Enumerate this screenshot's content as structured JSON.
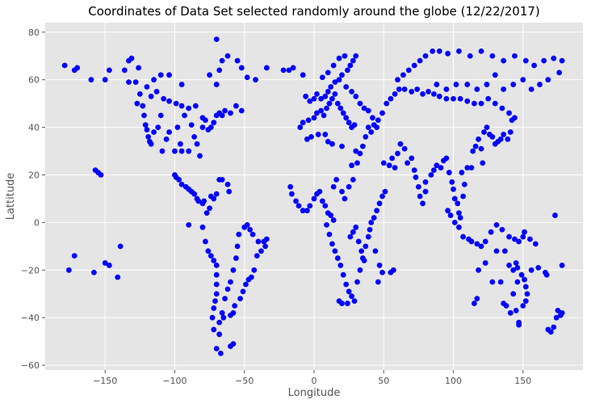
{
  "chart_data": {
    "type": "scatter",
    "title": "Coordinates of Data Set selected randomly around the globe (12/22/2017)",
    "xlabel": "Longitude",
    "ylabel": "Lattitude",
    "xlim": [
      -193,
      193
    ],
    "ylim": [
      -62,
      84
    ],
    "xticks": [
      -150,
      -100,
      -50,
      0,
      50,
      100,
      150
    ],
    "yticks": [
      -60,
      -40,
      -20,
      0,
      20,
      40,
      60,
      80
    ],
    "grid": true,
    "style": "ggplot",
    "marker_color": "#0000ff",
    "background_color": "#e5e5e5",
    "points": [
      [
        -179,
        66
      ],
      [
        -172,
        64
      ],
      [
        -170,
        65
      ],
      [
        -160,
        60
      ],
      [
        -157,
        22
      ],
      [
        -155,
        21
      ],
      [
        -153,
        20
      ],
      [
        -158,
        -21
      ],
      [
        -150,
        60
      ],
      [
        -147,
        64
      ],
      [
        -139,
        -10
      ],
      [
        -136,
        64
      ],
      [
        -133,
        68
      ],
      [
        -131,
        69
      ],
      [
        -126,
        65
      ],
      [
        -125,
        54
      ],
      [
        -127,
        50
      ],
      [
        -123,
        49
      ],
      [
        -122,
        45
      ],
      [
        -121,
        41
      ],
      [
        -120,
        39
      ],
      [
        -119,
        36
      ],
      [
        -118,
        34
      ],
      [
        -117,
        33
      ],
      [
        -115,
        38
      ],
      [
        -112,
        40
      ],
      [
        -110,
        45
      ],
      [
        -109,
        30
      ],
      [
        -106,
        35
      ],
      [
        -104,
        38
      ],
      [
        -100,
        30
      ],
      [
        -98,
        40
      ],
      [
        -96,
        33
      ],
      [
        -95,
        30
      ],
      [
        -93,
        45
      ],
      [
        -90,
        30
      ],
      [
        -88,
        41
      ],
      [
        -86,
        36
      ],
      [
        -84,
        33
      ],
      [
        -82,
        28
      ],
      [
        -80,
        40
      ],
      [
        -78,
        43
      ],
      [
        -76,
        39
      ],
      [
        -74,
        40
      ],
      [
        -72,
        42
      ],
      [
        -70,
        45
      ],
      [
        -68,
        46
      ],
      [
        -66,
        45
      ],
      [
        -64,
        47
      ],
      [
        -60,
        46
      ],
      [
        -56,
        49
      ],
      [
        -52,
        47
      ],
      [
        -117,
        53
      ],
      [
        -113,
        55
      ],
      [
        -108,
        52
      ],
      [
        -104,
        51
      ],
      [
        -99,
        50
      ],
      [
        -95,
        49
      ],
      [
        -90,
        48
      ],
      [
        -85,
        49
      ],
      [
        -80,
        44
      ],
      [
        -110,
        62
      ],
      [
        -115,
        60
      ],
      [
        -120,
        57
      ],
      [
        -128,
        59
      ],
      [
        -133,
        59
      ],
      [
        -104,
        62
      ],
      [
        -95,
        58
      ],
      [
        -75,
        62
      ],
      [
        -70,
        58
      ],
      [
        -68,
        64
      ],
      [
        -66,
        68
      ],
      [
        -70,
        77
      ],
      [
        -62,
        70
      ],
      [
        -55,
        68
      ],
      [
        -52,
        65
      ],
      [
        -48,
        61
      ],
      [
        -42,
        60
      ],
      [
        -34,
        65
      ],
      [
        -22,
        64
      ],
      [
        -18,
        64
      ],
      [
        -15,
        65
      ],
      [
        -8,
        62
      ],
      [
        -100,
        20
      ],
      [
        -99,
        19
      ],
      [
        -97,
        18
      ],
      [
        -95,
        16
      ],
      [
        -92,
        15
      ],
      [
        -90,
        14
      ],
      [
        -88,
        13
      ],
      [
        -86,
        12
      ],
      [
        -84,
        10
      ],
      [
        -83,
        9
      ],
      [
        -80,
        8
      ],
      [
        -79,
        9
      ],
      [
        -77,
        4
      ],
      [
        -75,
        6
      ],
      [
        -74,
        11
      ],
      [
        -72,
        10
      ],
      [
        -70,
        12
      ],
      [
        -68,
        18
      ],
      [
        -66,
        18
      ],
      [
        -62,
        16
      ],
      [
        -61,
        13
      ],
      [
        -90,
        -1
      ],
      [
        -80,
        -2
      ],
      [
        -78,
        -8
      ],
      [
        -76,
        -12
      ],
      [
        -74,
        -14
      ],
      [
        -72,
        -16
      ],
      [
        -70,
        -18
      ],
      [
        -70,
        -22
      ],
      [
        -70,
        -26
      ],
      [
        -70,
        -30
      ],
      [
        -71,
        -33
      ],
      [
        -72,
        -36
      ],
      [
        -73,
        -40
      ],
      [
        -72,
        -45
      ],
      [
        -70,
        -53
      ],
      [
        -67,
        -55
      ],
      [
        -68,
        -47
      ],
      [
        -66,
        -38
      ],
      [
        -64,
        -32
      ],
      [
        -62,
        -28
      ],
      [
        -60,
        -25
      ],
      [
        -58,
        -20
      ],
      [
        -56,
        -15
      ],
      [
        -55,
        -10
      ],
      [
        -54,
        -5
      ],
      [
        -50,
        -2
      ],
      [
        -48,
        -1
      ],
      [
        -46,
        -3
      ],
      [
        -44,
        -5
      ],
      [
        -40,
        -8
      ],
      [
        -38,
        -12
      ],
      [
        -36,
        -8
      ],
      [
        -34,
        -7
      ],
      [
        -35,
        -10
      ],
      [
        -41,
        -14
      ],
      [
        -43,
        -20
      ],
      [
        -45,
        -23
      ],
      [
        -47,
        -24
      ],
      [
        -49,
        -26
      ],
      [
        -51,
        -29
      ],
      [
        -53,
        -32
      ],
      [
        -57,
        -35
      ],
      [
        -58,
        -38
      ],
      [
        -60,
        -39
      ],
      [
        -65,
        -40
      ],
      [
        -68,
        -42
      ],
      [
        -60,
        -52
      ],
      [
        -58,
        -51
      ],
      [
        -17,
        15
      ],
      [
        -16,
        12
      ],
      [
        -13,
        9
      ],
      [
        -11,
        7
      ],
      [
        -8,
        5
      ],
      [
        -5,
        5
      ],
      [
        -3,
        7
      ],
      [
        0,
        10
      ],
      [
        2,
        12
      ],
      [
        4,
        13
      ],
      [
        6,
        9
      ],
      [
        8,
        7
      ],
      [
        10,
        4
      ],
      [
        12,
        3
      ],
      [
        14,
        1
      ],
      [
        9,
        -1
      ],
      [
        11,
        -5
      ],
      [
        13,
        -9
      ],
      [
        15,
        -12
      ],
      [
        17,
        -15
      ],
      [
        19,
        -18
      ],
      [
        21,
        -22
      ],
      [
        23,
        -26
      ],
      [
        25,
        -29
      ],
      [
        27,
        -31
      ],
      [
        29,
        -33
      ],
      [
        24,
        -34
      ],
      [
        20,
        -34
      ],
      [
        18,
        -33
      ],
      [
        31,
        -25
      ],
      [
        33,
        -20
      ],
      [
        35,
        -15
      ],
      [
        37,
        -10
      ],
      [
        39,
        -6
      ],
      [
        40,
        -3
      ],
      [
        41,
        0
      ],
      [
        43,
        2
      ],
      [
        45,
        5
      ],
      [
        47,
        8
      ],
      [
        49,
        11
      ],
      [
        51,
        13
      ],
      [
        44,
        -12
      ],
      [
        47,
        -18
      ],
      [
        49,
        -21
      ],
      [
        46,
        -25
      ],
      [
        57,
        -20
      ],
      [
        55,
        -21
      ],
      [
        30,
        -2
      ],
      [
        28,
        -4
      ],
      [
        26,
        -6
      ],
      [
        32,
        -8
      ],
      [
        34,
        -12
      ],
      [
        36,
        -16
      ],
      [
        14,
        15
      ],
      [
        16,
        18
      ],
      [
        20,
        13
      ],
      [
        22,
        10
      ],
      [
        25,
        15
      ],
      [
        28,
        18
      ],
      [
        31,
        25
      ],
      [
        33,
        29
      ],
      [
        35,
        32
      ],
      [
        37,
        36
      ],
      [
        39,
        40
      ],
      [
        41,
        38
      ],
      [
        43,
        41
      ],
      [
        45,
        40
      ],
      [
        30,
        30
      ],
      [
        27,
        24
      ],
      [
        -5,
        35
      ],
      [
        -2,
        36
      ],
      [
        3,
        37
      ],
      [
        8,
        37
      ],
      [
        10,
        34
      ],
      [
        13,
        33
      ],
      [
        20,
        32
      ],
      [
        -10,
        40
      ],
      [
        -8,
        42
      ],
      [
        -4,
        43
      ],
      [
        0,
        44
      ],
      [
        2,
        46
      ],
      [
        5,
        47
      ],
      [
        7,
        45
      ],
      [
        9,
        48
      ],
      [
        11,
        50
      ],
      [
        13,
        52
      ],
      [
        15,
        54
      ],
      [
        17,
        50
      ],
      [
        19,
        48
      ],
      [
        21,
        46
      ],
      [
        23,
        44
      ],
      [
        25,
        42
      ],
      [
        27,
        40
      ],
      [
        29,
        41
      ],
      [
        -6,
        53
      ],
      [
        -3,
        51
      ],
      [
        0,
        52
      ],
      [
        2,
        54
      ],
      [
        5,
        52
      ],
      [
        8,
        53
      ],
      [
        10,
        55
      ],
      [
        12,
        57
      ],
      [
        15,
        59
      ],
      [
        18,
        60
      ],
      [
        20,
        62
      ],
      [
        24,
        64
      ],
      [
        26,
        66
      ],
      [
        28,
        68
      ],
      [
        30,
        70
      ],
      [
        22,
        70
      ],
      [
        18,
        69
      ],
      [
        14,
        66
      ],
      [
        10,
        63
      ],
      [
        6,
        61
      ],
      [
        23,
        57
      ],
      [
        27,
        55
      ],
      [
        30,
        53
      ],
      [
        33,
        50
      ],
      [
        36,
        48
      ],
      [
        39,
        47
      ],
      [
        42,
        44
      ],
      [
        46,
        43
      ],
      [
        49,
        46
      ],
      [
        52,
        50
      ],
      [
        55,
        52
      ],
      [
        58,
        54
      ],
      [
        61,
        56
      ],
      [
        65,
        56
      ],
      [
        70,
        55
      ],
      [
        74,
        56
      ],
      [
        78,
        54
      ],
      [
        82,
        55
      ],
      [
        86,
        54
      ],
      [
        90,
        53
      ],
      [
        95,
        52
      ],
      [
        100,
        52
      ],
      [
        105,
        52
      ],
      [
        110,
        51
      ],
      [
        115,
        50
      ],
      [
        120,
        50
      ],
      [
        125,
        52
      ],
      [
        130,
        50
      ],
      [
        135,
        48
      ],
      [
        140,
        46
      ],
      [
        60,
        60
      ],
      [
        64,
        62
      ],
      [
        68,
        64
      ],
      [
        72,
        66
      ],
      [
        76,
        68
      ],
      [
        80,
        70
      ],
      [
        85,
        72
      ],
      [
        90,
        72
      ],
      [
        96,
        71
      ],
      [
        104,
        72
      ],
      [
        112,
        70
      ],
      [
        120,
        72
      ],
      [
        128,
        70
      ],
      [
        136,
        68
      ],
      [
        144,
        70
      ],
      [
        152,
        68
      ],
      [
        158,
        66
      ],
      [
        165,
        68
      ],
      [
        172,
        69
      ],
      [
        178,
        68
      ],
      [
        176,
        63
      ],
      [
        168,
        60
      ],
      [
        162,
        58
      ],
      [
        156,
        56
      ],
      [
        150,
        60
      ],
      [
        143,
        58
      ],
      [
        136,
        56
      ],
      [
        130,
        62
      ],
      [
        124,
        58
      ],
      [
        117,
        56
      ],
      [
        110,
        58
      ],
      [
        102,
        58
      ],
      [
        95,
        56
      ],
      [
        88,
        58
      ],
      [
        50,
        25
      ],
      [
        54,
        24
      ],
      [
        56,
        27
      ],
      [
        58,
        23
      ],
      [
        60,
        29
      ],
      [
        62,
        33
      ],
      [
        65,
        31
      ],
      [
        67,
        25
      ],
      [
        70,
        27
      ],
      [
        72,
        22
      ],
      [
        73,
        19
      ],
      [
        75,
        15
      ],
      [
        76,
        11
      ],
      [
        78,
        8
      ],
      [
        80,
        13
      ],
      [
        80,
        17
      ],
      [
        84,
        20
      ],
      [
        86,
        22
      ],
      [
        88,
        24
      ],
      [
        91,
        23
      ],
      [
        93,
        26
      ],
      [
        95,
        27
      ],
      [
        97,
        21
      ],
      [
        99,
        17
      ],
      [
        100,
        14
      ],
      [
        101,
        10
      ],
      [
        103,
        8
      ],
      [
        104,
        4
      ],
      [
        105,
        2
      ],
      [
        107,
        11
      ],
      [
        108,
        16
      ],
      [
        106,
        21
      ],
      [
        110,
        23
      ],
      [
        113,
        23
      ],
      [
        114,
        30
      ],
      [
        116,
        32
      ],
      [
        118,
        35
      ],
      [
        120,
        31
      ],
      [
        121,
        25
      ],
      [
        122,
        38
      ],
      [
        124,
        40
      ],
      [
        126,
        37
      ],
      [
        128,
        36
      ],
      [
        130,
        33
      ],
      [
        132,
        34
      ],
      [
        134,
        35
      ],
      [
        136,
        37
      ],
      [
        139,
        35
      ],
      [
        141,
        38
      ],
      [
        142,
        43
      ],
      [
        144,
        44
      ],
      [
        111,
        -7
      ],
      [
        107,
        -6
      ],
      [
        104,
        -2
      ],
      [
        101,
        0
      ],
      [
        98,
        3
      ],
      [
        96,
        5
      ],
      [
        113,
        -8
      ],
      [
        117,
        -9
      ],
      [
        120,
        -10
      ],
      [
        123,
        -8
      ],
      [
        127,
        -4
      ],
      [
        131,
        -1
      ],
      [
        135,
        -3
      ],
      [
        140,
        -6
      ],
      [
        144,
        -7
      ],
      [
        147,
        -8
      ],
      [
        150,
        -6
      ],
      [
        155,
        -7
      ],
      [
        159,
        -9
      ],
      [
        123,
        -17
      ],
      [
        128,
        -25
      ],
      [
        131,
        -12
      ],
      [
        137,
        -12
      ],
      [
        140,
        -18
      ],
      [
        143,
        -20
      ],
      [
        145,
        -17
      ],
      [
        146,
        -19
      ],
      [
        149,
        -22
      ],
      [
        151,
        -24
      ],
      [
        152,
        -27
      ],
      [
        153,
        -30
      ],
      [
        152,
        -33
      ],
      [
        150,
        -35
      ],
      [
        145,
        -37
      ],
      [
        141,
        -38
      ],
      [
        138,
        -35
      ],
      [
        136,
        -34
      ],
      [
        117,
        -32
      ],
      [
        115,
        -34
      ],
      [
        147,
        -42
      ],
      [
        147,
        -43
      ],
      [
        168,
        -45
      ],
      [
        170,
        -46
      ],
      [
        172,
        -44
      ],
      [
        175,
        -37
      ],
      [
        177,
        -39
      ],
      [
        174,
        -40
      ],
      [
        178,
        -38
      ],
      [
        167,
        -22
      ],
      [
        166,
        -21
      ],
      [
        178,
        -18
      ],
      [
        173,
        3
      ],
      [
        151,
        -4
      ],
      [
        118,
        -20
      ],
      [
        134,
        -25
      ],
      [
        156,
        -20
      ],
      [
        161,
        -19
      ],
      [
        143,
        -30
      ],
      [
        146,
        -25
      ],
      [
        -176,
        -20
      ],
      [
        -172,
        -14
      ],
      [
        -150,
        -17
      ],
      [
        -147,
        -18
      ],
      [
        -141,
        -23
      ]
    ]
  }
}
